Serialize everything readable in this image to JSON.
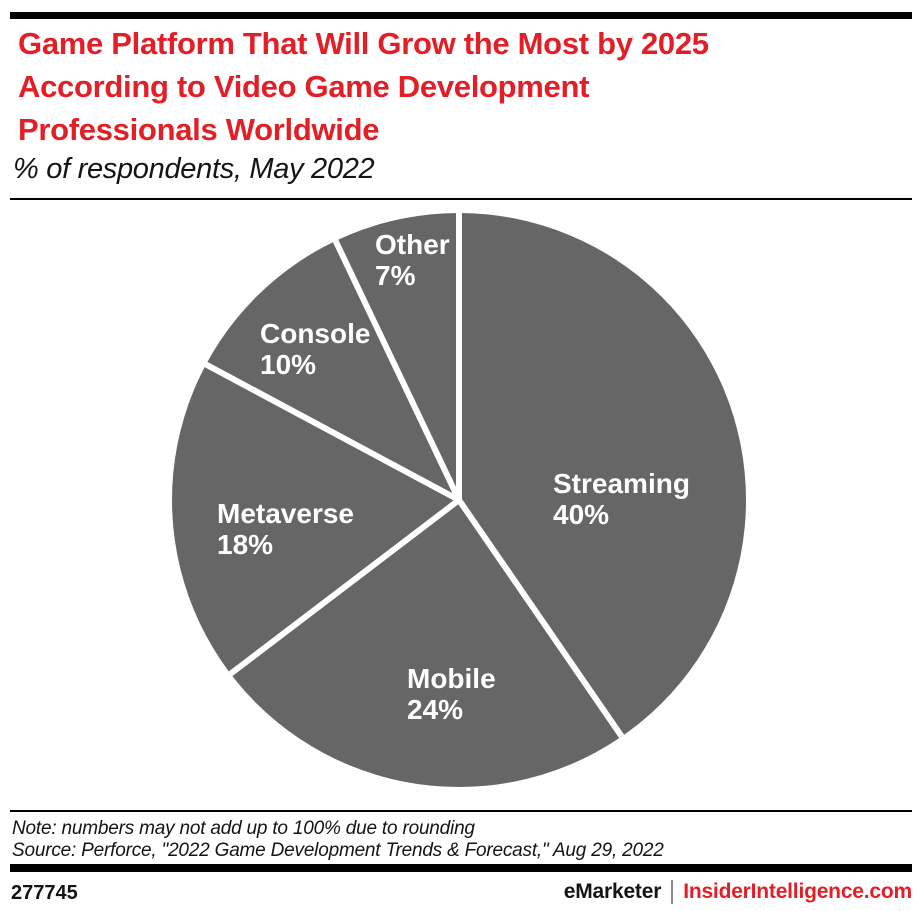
{
  "header": {
    "title": "Game Platform That Will Grow the Most by 2025 According to Video Game Development Professionals Worldwide",
    "title_lines": [
      "Game Platform That Will Grow the Most by 2025",
      "According to Video Game Development",
      "Professionals Worldwide"
    ],
    "subtitle": "% of respondents, May 2022"
  },
  "chart_data": {
    "type": "pie",
    "title": "Game Platform That Will Grow the Most by 2025 According to Video Game Development Professionals Worldwide",
    "subtitle": "% of respondents, May 2022",
    "unit": "% of respondents",
    "direction": "clockwise",
    "start_angle_deg": 0,
    "legend": "none (labels inside slices)",
    "slice_color": "#666666",
    "divider_color": "#ffffff",
    "label_color": "#ffffff",
    "slices": [
      {
        "label": "Streaming",
        "value": 40,
        "percent_label": "40%"
      },
      {
        "label": "Mobile",
        "value": 24,
        "percent_label": "24%"
      },
      {
        "label": "Metaverse",
        "value": 18,
        "percent_label": "18%"
      },
      {
        "label": "Console",
        "value": 10,
        "percent_label": "10%"
      },
      {
        "label": "Other",
        "value": 7,
        "percent_label": "7%"
      }
    ],
    "note": "numbers may not add up to 100% due to rounding"
  },
  "footer": {
    "note": "Note: numbers may not add up to 100% due to rounding",
    "source": "Source: Perforce, \"2022 Game Development Trends & Forecast,\" Aug 29, 2022",
    "chart_id": "277745",
    "brand": "eMarketer",
    "site": "InsiderIntelligence.com"
  },
  "colors": {
    "accent_red": "#e21e26",
    "pie_gray": "#666666",
    "label_white": "#ffffff",
    "bar_black": "#000000",
    "divider_gray": "#8a8a8a"
  }
}
